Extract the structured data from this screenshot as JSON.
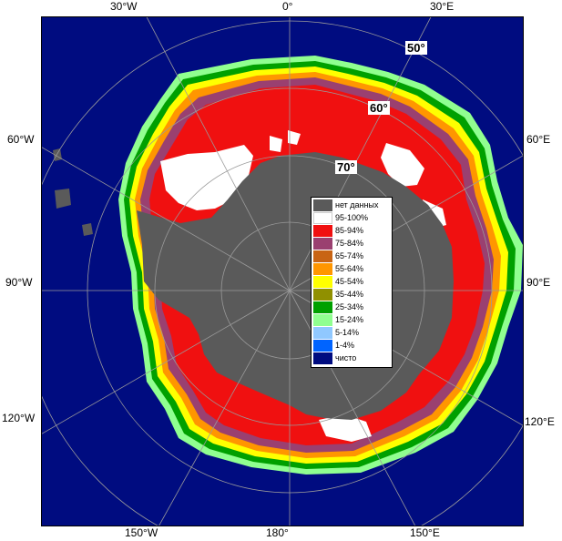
{
  "map": {
    "colors": {
      "no_data": "#5a5a5a",
      "open_water": "#000c80",
      "grid": "#9a9a9a"
    }
  },
  "lon_labels": {
    "w30": "30°W",
    "zero": "0°",
    "e30": "30°E",
    "w60": "60°W",
    "e60": "60°E",
    "w90": "90°W",
    "e90": "90°E",
    "w120": "120°W",
    "e120": "120°E",
    "w150": "150°W",
    "deg180": "180°",
    "e150": "150°E"
  },
  "lat_labels": {
    "lat50": "50°",
    "lat60": "60°",
    "lat70": "70°"
  },
  "legend": {
    "items": [
      {
        "label": "нет данных",
        "color": "#5a5a5a"
      },
      {
        "label": "95-100%",
        "color": "#ffffff"
      },
      {
        "label": "85-94%",
        "color": "#f01010"
      },
      {
        "label": "75-84%",
        "color": "#9a4070"
      },
      {
        "label": "65-74%",
        "color": "#c86414"
      },
      {
        "label": "55-64%",
        "color": "#ff9600"
      },
      {
        "label": "45-54%",
        "color": "#ffff00"
      },
      {
        "label": "35-44%",
        "color": "#909000"
      },
      {
        "label": "25-34%",
        "color": "#00a000"
      },
      {
        "label": "15-24%",
        "color": "#90ff90"
      },
      {
        "label": "5-14%",
        "color": "#90c8ff"
      },
      {
        "label": "1-4%",
        "color": "#0064ff"
      },
      {
        "label": "чисто",
        "color": "#000c80"
      }
    ]
  }
}
